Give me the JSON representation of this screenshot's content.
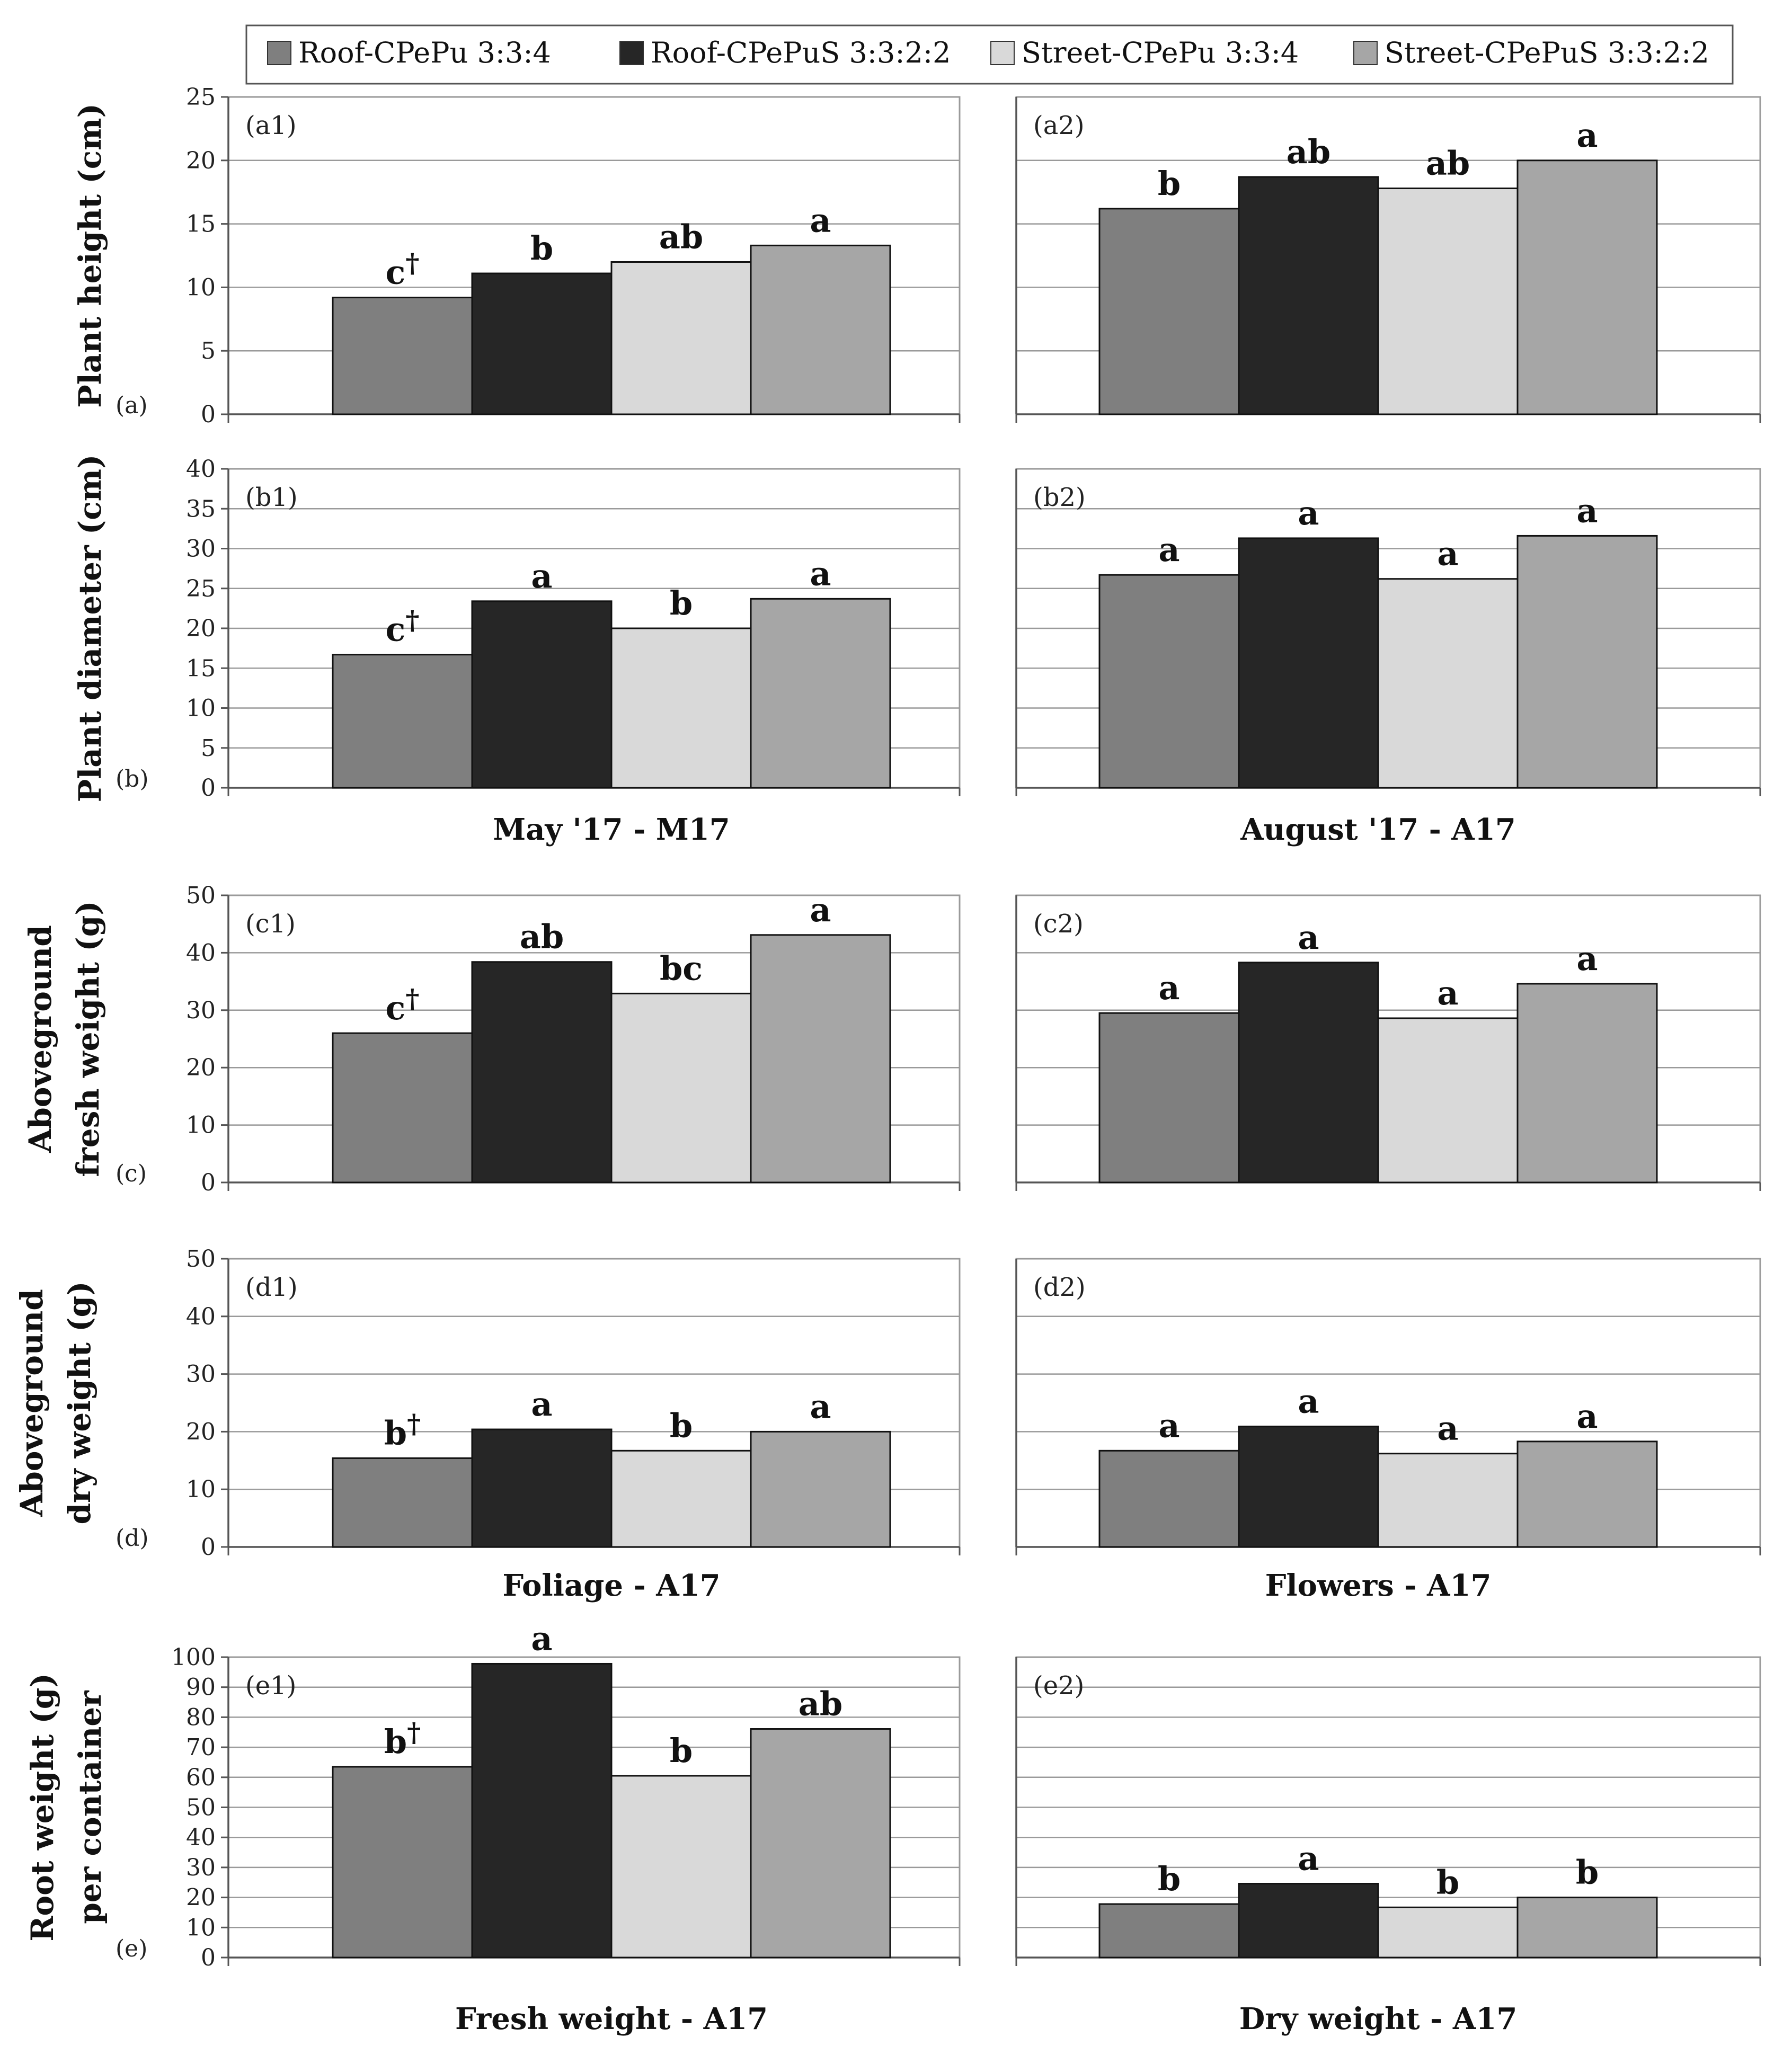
{
  "legend": {
    "items": [
      {
        "label": "Roof-CPePu 3:3:4",
        "color": "#7f7f7f"
      },
      {
        "label": "Roof-CPePuS 3:3:2:2",
        "color": "#262626"
      },
      {
        "label": "Street-CPePu 3:3:4",
        "color": "#d9d9d9"
      },
      {
        "label": "Street-CPePuS 3:3:2:2",
        "color": "#a6a6a6"
      }
    ]
  },
  "row_letters": [
    "(a)",
    "(b)",
    "(c)",
    "(d)",
    "(e)"
  ],
  "y_labels": {
    "a": [
      "Plant height (cm)"
    ],
    "b": [
      "Plant diameter (cm)"
    ],
    "c": [
      "Aboveground",
      "fresh weight (g)"
    ],
    "d": [
      "Aboveground",
      "dry weight (g)"
    ],
    "e": [
      "Root weight (g)",
      "per container"
    ]
  },
  "x_labels": {
    "b": [
      "May '17 - M17",
      "August '17 - A17"
    ],
    "d": [
      "Foliage - A17",
      "Flowers - A17"
    ],
    "e": [
      "Fresh weight - A17",
      "Dry weight - A17"
    ]
  },
  "chart_data": [
    {
      "id": "(a1)",
      "type": "bar",
      "ylim": [
        0,
        25
      ],
      "yticks": [
        0,
        5,
        10,
        15,
        20,
        25
      ],
      "values": [
        9.2,
        11.1,
        12.0,
        13.3
      ],
      "labels": [
        "c",
        "b",
        "ab",
        "a"
      ],
      "dagger": [
        true,
        false,
        false,
        false
      ]
    },
    {
      "id": "(a2)",
      "type": "bar",
      "ylim": [
        0,
        25
      ],
      "yticks": [],
      "values": [
        16.2,
        18.7,
        17.8,
        20.0
      ],
      "labels": [
        "b",
        "ab",
        "ab",
        "a"
      ],
      "dagger": [
        false,
        false,
        false,
        false
      ]
    },
    {
      "id": "(b1)",
      "type": "bar",
      "ylim": [
        0,
        40
      ],
      "yticks": [
        0,
        5,
        10,
        15,
        20,
        25,
        30,
        35,
        40
      ],
      "values": [
        16.7,
        23.4,
        20.0,
        23.7
      ],
      "labels": [
        "c",
        "a",
        "b",
        "a"
      ],
      "dagger": [
        true,
        false,
        false,
        false
      ]
    },
    {
      "id": "(b2)",
      "type": "bar",
      "ylim": [
        0,
        40
      ],
      "yticks": [],
      "values": [
        26.7,
        31.3,
        26.2,
        31.6
      ],
      "labels": [
        "a",
        "a",
        "a",
        "a"
      ],
      "dagger": [
        false,
        false,
        false,
        false
      ]
    },
    {
      "id": "(c1)",
      "type": "bar",
      "ylim": [
        0,
        50
      ],
      "yticks": [
        0,
        10,
        20,
        30,
        40,
        50
      ],
      "values": [
        26.0,
        38.4,
        32.9,
        43.1
      ],
      "labels": [
        "c",
        "ab",
        "bc",
        "a"
      ],
      "dagger": [
        true,
        false,
        false,
        false
      ]
    },
    {
      "id": "(c2)",
      "type": "bar",
      "ylim": [
        0,
        50
      ],
      "yticks": [],
      "values": [
        29.5,
        38.3,
        28.6,
        34.6
      ],
      "labels": [
        "a",
        "a",
        "a",
        "a"
      ],
      "dagger": [
        false,
        false,
        false,
        false
      ]
    },
    {
      "id": "(d1)",
      "type": "bar",
      "ylim": [
        0,
        50
      ],
      "yticks": [
        0,
        10,
        20,
        30,
        40,
        50
      ],
      "values": [
        15.4,
        20.4,
        16.7,
        20.0
      ],
      "labels": [
        "b",
        "a",
        "b",
        "a"
      ],
      "dagger": [
        true,
        false,
        false,
        false
      ]
    },
    {
      "id": "(d2)",
      "type": "bar",
      "ylim": [
        0,
        50
      ],
      "yticks": [],
      "values": [
        16.7,
        20.9,
        16.2,
        18.3
      ],
      "labels": [
        "a",
        "a",
        "a",
        "a"
      ],
      "dagger": [
        false,
        false,
        false,
        false
      ]
    },
    {
      "id": "(e1)",
      "type": "bar",
      "ylim": [
        0,
        100
      ],
      "yticks": [
        0,
        10,
        20,
        30,
        40,
        50,
        60,
        70,
        80,
        90,
        100
      ],
      "values": [
        63.5,
        97.8,
        60.5,
        76.1
      ],
      "labels": [
        "b",
        "a",
        "b",
        "ab"
      ],
      "dagger": [
        true,
        false,
        false,
        false
      ]
    },
    {
      "id": "(e2)",
      "type": "bar",
      "ylim": [
        0,
        100
      ],
      "yticks": [],
      "values": [
        17.8,
        24.6,
        16.7,
        20.0
      ],
      "labels": [
        "b",
        "a",
        "b",
        "b"
      ],
      "dagger": [
        false,
        false,
        false,
        false
      ]
    }
  ]
}
